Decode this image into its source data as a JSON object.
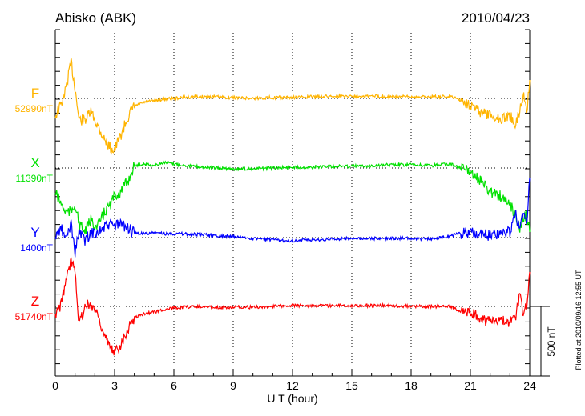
{
  "chart_data": {
    "type": "line",
    "title": "Abisko (ABK)",
    "date": "2010/04/23",
    "xlabel": "U T (hour)",
    "xlim": [
      0,
      24
    ],
    "xticks": [
      "0",
      "3",
      "6",
      "9",
      "12",
      "15",
      "18",
      "21",
      "24"
    ],
    "scale_bar_label": "500 nT",
    "scale_bar_nT": 500,
    "footer": "Plotted at 2010/09/16 12:55 UT",
    "grid": true,
    "t": [
      0,
      0.3,
      0.5,
      0.8,
      1,
      1.2,
      1.5,
      1.8,
      2.1,
      2.5,
      2.8,
      3,
      3.3,
      3.7,
      4,
      4.5,
      5,
      5.5,
      6,
      7,
      8,
      9,
      10,
      11,
      12,
      13,
      14,
      15,
      16,
      17,
      18,
      19,
      20,
      20.5,
      21,
      21.5,
      22,
      22.5,
      23,
      23.3,
      23.5,
      23.7,
      23.85,
      24
    ],
    "series": [
      {
        "name": "F",
        "baseline_label": "52990nT",
        "baseline_nT": 52990,
        "color": "#ffb400",
        "values": [
          -126,
          -40,
          46,
          259,
          75,
          -155,
          -155,
          -98,
          -184,
          -299,
          -357,
          -368,
          -270,
          -126,
          -58,
          -29,
          -17,
          -6,
          0,
          12,
          12,
          6,
          0,
          6,
          6,
          12,
          17,
          17,
          17,
          12,
          12,
          12,
          12,
          -12,
          -40,
          -98,
          -126,
          -144,
          -126,
          -184,
          -86,
          29,
          -98,
          132
        ]
      },
      {
        "name": "X",
        "baseline_label": "11390nT",
        "baseline_nT": 11390,
        "color": "#00e000",
        "values": [
          -173,
          -259,
          -316,
          -316,
          -259,
          -403,
          -460,
          -374,
          -431,
          -316,
          -259,
          -201,
          -173,
          -86,
          17,
          29,
          17,
          40,
          29,
          12,
          0,
          -6,
          -6,
          0,
          6,
          6,
          12,
          12,
          17,
          23,
          23,
          17,
          29,
          0,
          -29,
          -86,
          -173,
          -201,
          -259,
          -345,
          -431,
          -345,
          -345,
          -460
        ]
      },
      {
        "name": "Y",
        "baseline_label": "1400nT",
        "baseline_nT": 1400,
        "color": "#0000ff",
        "values": [
          0,
          69,
          -17,
          98,
          -104,
          40,
          -17,
          29,
          40,
          69,
          98,
          81,
          98,
          69,
          29,
          29,
          35,
          29,
          29,
          23,
          17,
          6,
          -6,
          -17,
          -23,
          -17,
          -12,
          -6,
          -6,
          -6,
          -6,
          -12,
          12,
          29,
          35,
          23,
          17,
          29,
          40,
          167,
          40,
          184,
          98,
          431
        ]
      },
      {
        "name": "Z",
        "baseline_label": "51740nT",
        "baseline_nT": 51740,
        "color": "#ff0000",
        "values": [
          -69,
          17,
          161,
          322,
          276,
          -127,
          0,
          17,
          -40,
          -213,
          -311,
          -328,
          -270,
          -155,
          -81,
          -52,
          -40,
          -23,
          -12,
          0,
          -6,
          -6,
          -6,
          0,
          6,
          6,
          6,
          6,
          6,
          6,
          0,
          0,
          0,
          -40,
          -40,
          -86,
          -109,
          -98,
          -109,
          -69,
          86,
          -69,
          17,
          247
        ]
      }
    ]
  }
}
